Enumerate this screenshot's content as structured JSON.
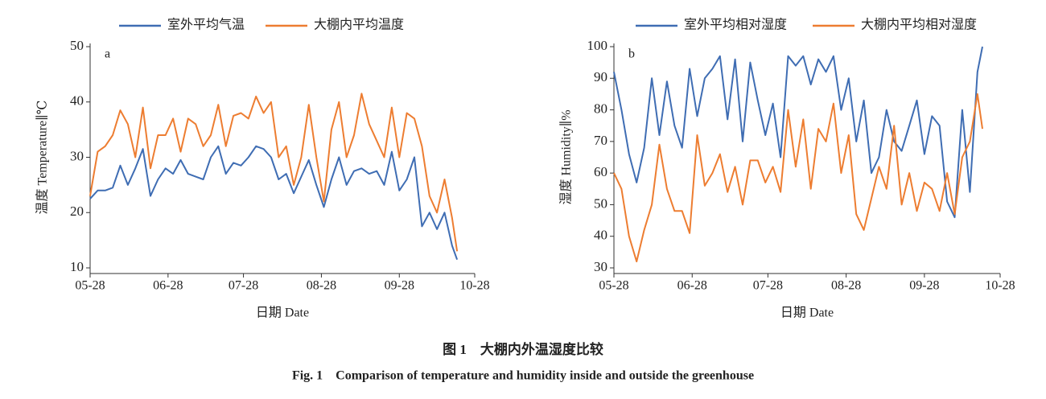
{
  "chart_data": [
    {
      "type": "line",
      "panel": "a",
      "y_label": "温度 Temperature∥℃",
      "x_label": "日期 Date",
      "xlim": [
        "05-28",
        "10-28"
      ],
      "xticks": [
        "05-28",
        "06-28",
        "07-28",
        "08-28",
        "09-28",
        "10-28"
      ],
      "ylim": [
        10,
        50
      ],
      "yticks": [
        10,
        20,
        30,
        40,
        50
      ],
      "x": [
        "05-28",
        "05-31",
        "06-03",
        "06-06",
        "06-09",
        "06-12",
        "06-15",
        "06-18",
        "06-21",
        "06-24",
        "06-27",
        "06-30",
        "07-03",
        "07-06",
        "07-09",
        "07-12",
        "07-15",
        "07-18",
        "07-21",
        "07-24",
        "07-27",
        "07-30",
        "08-02",
        "08-05",
        "08-08",
        "08-11",
        "08-14",
        "08-17",
        "08-20",
        "08-23",
        "08-26",
        "08-29",
        "09-01",
        "09-04",
        "09-07",
        "09-10",
        "09-13",
        "09-16",
        "09-19",
        "09-22",
        "09-25",
        "09-28",
        "10-01",
        "10-04",
        "10-07",
        "10-10",
        "10-13",
        "10-16",
        "10-19",
        "10-21"
      ],
      "series": [
        {
          "name": "室外平均气温",
          "color": "#3f6db3",
          "values": [
            22.5,
            24,
            24,
            24.5,
            28.5,
            25,
            28,
            31.5,
            23,
            26,
            28,
            27,
            29.5,
            27,
            26.5,
            26,
            30,
            32,
            27,
            29,
            28.5,
            30,
            32,
            31.5,
            30,
            26,
            27,
            23.5,
            26.5,
            29.5,
            25,
            21,
            26,
            30,
            25,
            27.5,
            28,
            27,
            27.5,
            25,
            31,
            24,
            26,
            30,
            17.5,
            20,
            17,
            20,
            14,
            11.5
          ]
        },
        {
          "name": "大棚内平均温度",
          "color": "#ed7d31",
          "values": [
            23,
            31,
            32,
            34,
            38.5,
            36,
            30,
            39,
            28,
            34,
            34,
            37,
            31,
            37,
            36,
            32,
            34,
            39.5,
            32,
            37.5,
            38,
            37,
            41,
            38,
            40,
            30,
            32,
            25,
            30,
            39.5,
            30,
            22,
            35,
            40,
            30,
            34,
            41.5,
            36,
            33,
            30,
            39,
            30,
            38,
            37,
            32,
            23,
            20,
            26,
            19,
            13
          ]
        }
      ]
    },
    {
      "type": "line",
      "panel": "b",
      "y_label": "湿度 Humidity∥%",
      "x_label": "日期 Date",
      "xlim": [
        "05-28",
        "10-28"
      ],
      "xticks": [
        "05-28",
        "06-28",
        "07-28",
        "08-28",
        "09-28",
        "10-28"
      ],
      "ylim": [
        30,
        100
      ],
      "yticks": [
        30,
        40,
        50,
        60,
        70,
        80,
        90,
        100
      ],
      "x": [
        "05-28",
        "05-31",
        "06-03",
        "06-06",
        "06-09",
        "06-12",
        "06-15",
        "06-18",
        "06-21",
        "06-24",
        "06-27",
        "06-30",
        "07-03",
        "07-06",
        "07-09",
        "07-12",
        "07-15",
        "07-18",
        "07-21",
        "07-24",
        "07-27",
        "07-30",
        "08-02",
        "08-05",
        "08-08",
        "08-11",
        "08-14",
        "08-17",
        "08-20",
        "08-23",
        "08-26",
        "08-29",
        "09-01",
        "09-04",
        "09-07",
        "09-10",
        "09-13",
        "09-16",
        "09-19",
        "09-22",
        "09-25",
        "09-28",
        "10-01",
        "10-04",
        "10-07",
        "10-10",
        "10-13",
        "10-16",
        "10-19",
        "10-21"
      ],
      "series": [
        {
          "name": "室外平均相对湿度",
          "color": "#3f6db3",
          "values": [
            92,
            80,
            66,
            57,
            68,
            90,
            72,
            89,
            75,
            68,
            93,
            78,
            90,
            93,
            97,
            77,
            96,
            70,
            95,
            83,
            72,
            82,
            65,
            97,
            94,
            97,
            88,
            96,
            92,
            97,
            80,
            90,
            70,
            83,
            60,
            65,
            80,
            70,
            67,
            75,
            83,
            66,
            78,
            75,
            51,
            46,
            80,
            54,
            92,
            100
          ]
        },
        {
          "name": "大棚内平均相对湿度",
          "color": "#ed7d31",
          "values": [
            60,
            55,
            40,
            32,
            42,
            50,
            69,
            55,
            48,
            48,
            41,
            72,
            56,
            60,
            66,
            54,
            62,
            50,
            64,
            64,
            57,
            62,
            54,
            80,
            62,
            77,
            55,
            74,
            70,
            82,
            60,
            72,
            47,
            42,
            52,
            62,
            55,
            75,
            50,
            60,
            48,
            57,
            55,
            48,
            60,
            47,
            65,
            70,
            85,
            74
          ]
        }
      ]
    }
  ],
  "caption": {
    "zh": "图 1　大棚内外温湿度比较",
    "en": "Fig. 1　Comparison of temperature and humidity inside and outside the greenhouse"
  }
}
